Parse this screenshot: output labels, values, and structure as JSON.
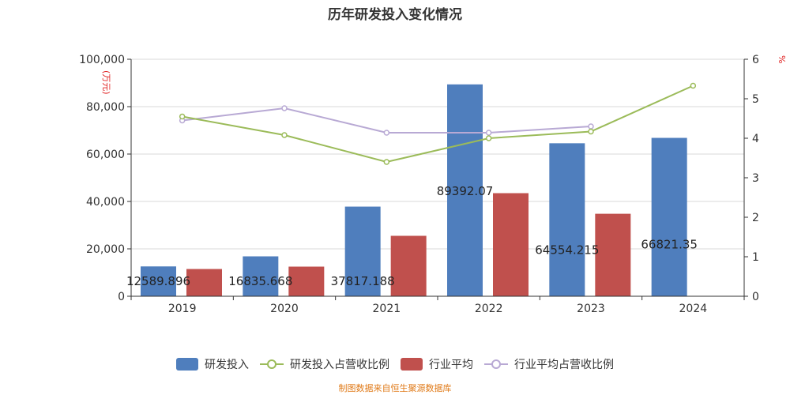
{
  "title": "历年研发投入变化情况",
  "left_axis_unit": "(万元)",
  "right_axis_unit": "%",
  "source_note": "制图数据来自恒生聚源数据库",
  "colors": {
    "rd_bar": "#4f7ebd",
    "industry_bar": "#c0504d",
    "rd_ratio_line": "#9bbb59",
    "industry_ratio_line": "#b8a9d4"
  },
  "chart_data": {
    "type": "bar",
    "categories": [
      "2019",
      "2020",
      "2021",
      "2022",
      "2023",
      "2024"
    ],
    "y_left": {
      "ylim": [
        0,
        100000
      ],
      "ticks": [
        "0",
        "20,000",
        "40,000",
        "60,000",
        "80,000",
        "100,000"
      ]
    },
    "y_right": {
      "ylim": [
        0,
        6
      ],
      "ticks": [
        "0",
        "1",
        "2",
        "3",
        "4",
        "5",
        "6"
      ]
    },
    "series": [
      {
        "name": "研发投入",
        "kind": "bar",
        "axis": "left",
        "values": [
          12589.896,
          16835.668,
          37817.188,
          89392.07,
          64554.215,
          66821.35
        ],
        "labels": [
          "12589.896",
          "16835.668",
          "37817.188",
          "89392.07",
          "64554.215",
          "66821.35"
        ]
      },
      {
        "name": "研发投入占营收比例",
        "kind": "line",
        "axis": "right",
        "values": [
          4.55,
          4.08,
          3.4,
          4.0,
          4.17,
          5.33
        ]
      },
      {
        "name": "行业平均",
        "kind": "bar",
        "axis": "left",
        "values": [
          11500,
          12500,
          25500,
          43500,
          34800,
          null
        ]
      },
      {
        "name": "行业平均占营收比例",
        "kind": "line",
        "axis": "right",
        "values": [
          4.45,
          4.76,
          4.14,
          4.14,
          4.3,
          null
        ]
      }
    ],
    "legend_position": "bottom",
    "grid": true
  }
}
